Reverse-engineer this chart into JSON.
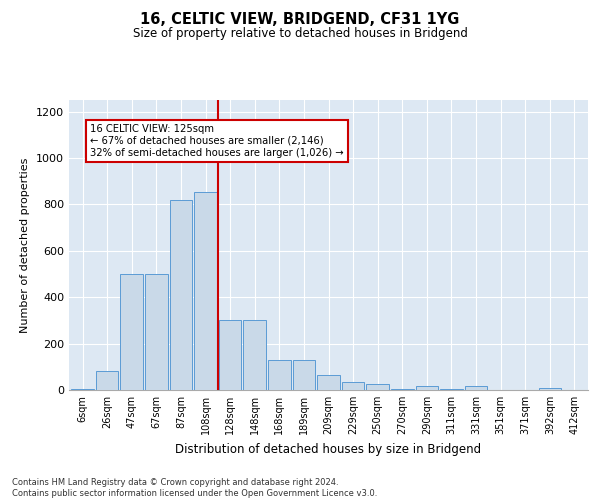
{
  "title": "16, CELTIC VIEW, BRIDGEND, CF31 1YG",
  "subtitle": "Size of property relative to detached houses in Bridgend",
  "xlabel": "Distribution of detached houses by size in Bridgend",
  "ylabel": "Number of detached properties",
  "annotation_line1": "16 CELTIC VIEW: 125sqm",
  "annotation_line2": "← 67% of detached houses are smaller (2,146)",
  "annotation_line3": "32% of semi-detached houses are larger (1,026) →",
  "categories": [
    "6sqm",
    "26sqm",
    "47sqm",
    "67sqm",
    "87sqm",
    "108sqm",
    "128sqm",
    "148sqm",
    "168sqm",
    "189sqm",
    "209sqm",
    "229sqm",
    "250sqm",
    "270sqm",
    "290sqm",
    "311sqm",
    "331sqm",
    "351sqm",
    "371sqm",
    "392sqm",
    "412sqm"
  ],
  "bar_heights": [
    5,
    80,
    500,
    500,
    820,
    855,
    300,
    300,
    130,
    130,
    65,
    35,
    25,
    5,
    18,
    5,
    18,
    2,
    2,
    8,
    2
  ],
  "bar_color": "#c9d9e8",
  "bar_edge_color": "#5b9bd5",
  "vline_color": "#cc0000",
  "vline_index": 6,
  "ylim": [
    0,
    1250
  ],
  "yticks": [
    0,
    200,
    400,
    600,
    800,
    1000,
    1200
  ],
  "background_color": "#dde8f3",
  "grid_color": "#ffffff",
  "footer_line1": "Contains HM Land Registry data © Crown copyright and database right 2024.",
  "footer_line2": "Contains public sector information licensed under the Open Government Licence v3.0."
}
